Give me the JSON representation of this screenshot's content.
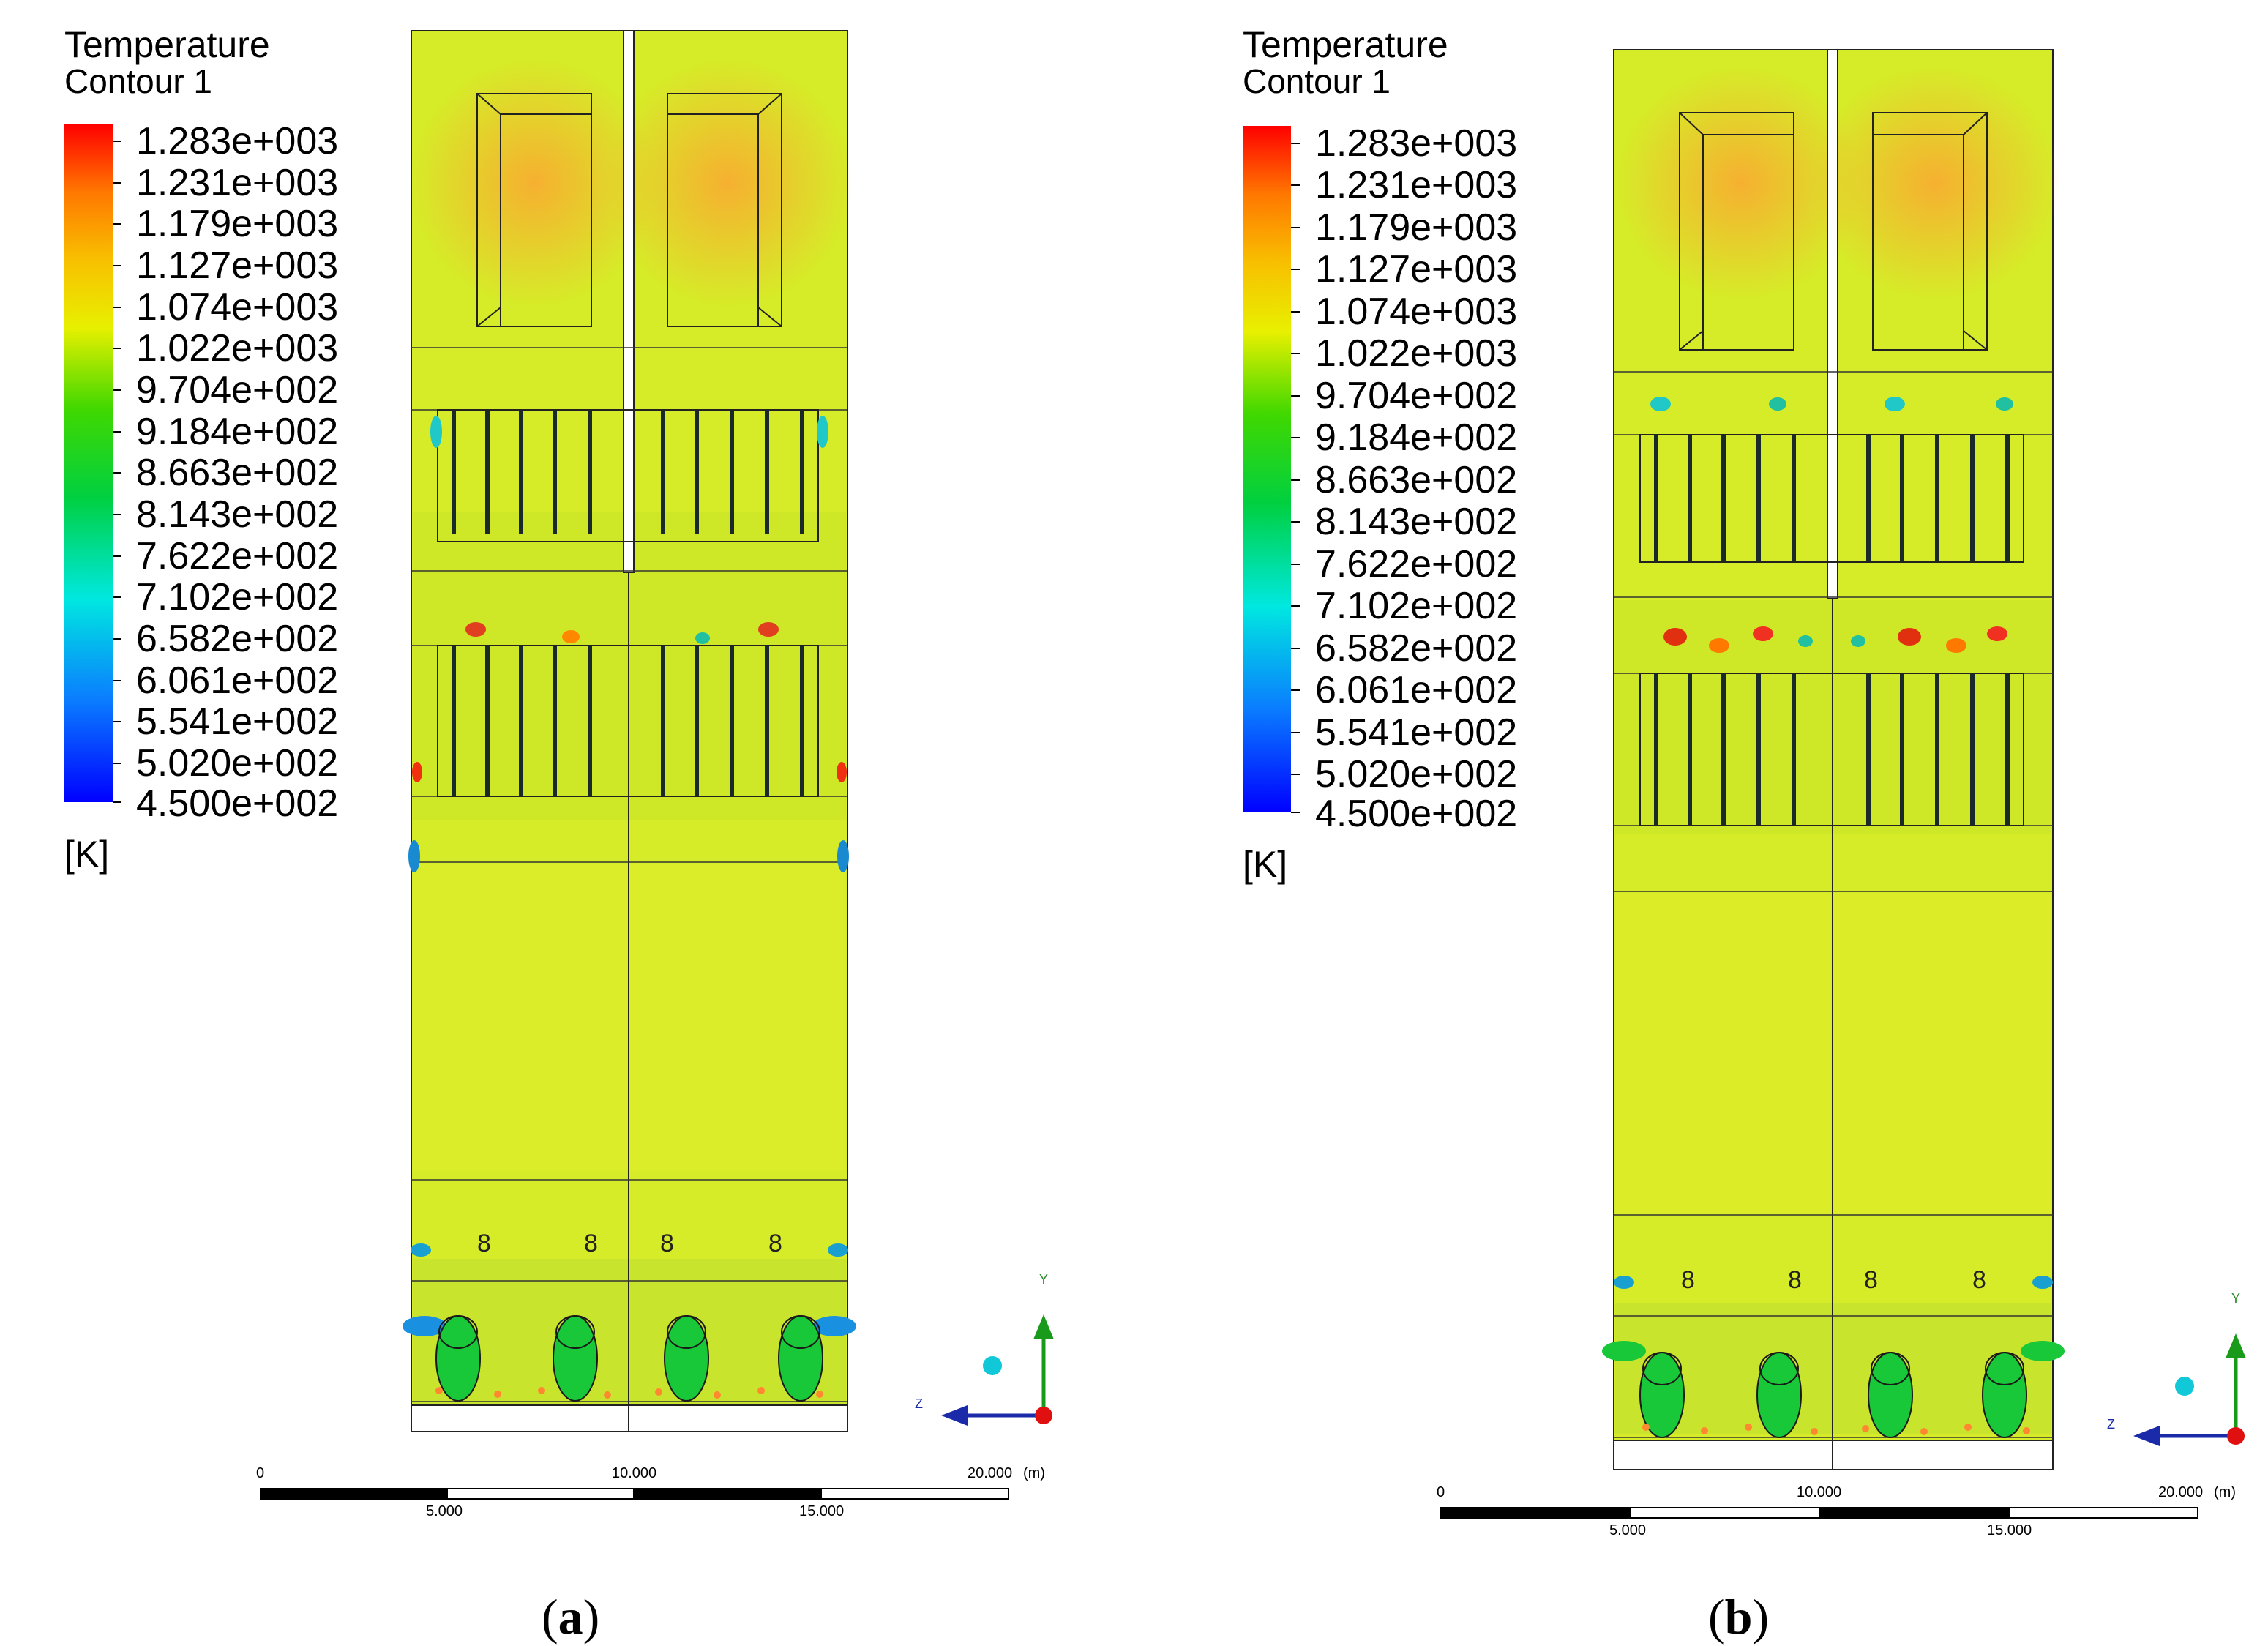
{
  "panels": [
    {
      "caption_open": "(",
      "caption_letter": "a",
      "caption_close": ")",
      "legend": {
        "title": "Temperature",
        "subtitle": "Contour 1",
        "ticks": [
          "1.283e+003",
          "1.231e+003",
          "1.179e+003",
          "1.127e+003",
          "1.074e+003",
          "1.022e+003",
          "9.704e+002",
          "9.184e+002",
          "8.663e+002",
          "8.143e+002",
          "7.622e+002",
          "7.102e+002",
          "6.582e+002",
          "6.061e+002",
          "5.541e+002",
          "5.020e+002",
          "4.500e+002"
        ],
        "unit": "[K]"
      },
      "scale": {
        "labels": [
          "0",
          "10.000",
          "20.000",
          "(m)",
          "5.000",
          "15.000"
        ]
      },
      "axes": {
        "y": "Y",
        "z": "Z"
      }
    },
    {
      "caption_open": "(",
      "caption_letter": "b",
      "caption_close": ")",
      "legend": {
        "title": "Temperature",
        "subtitle": "Contour 1",
        "ticks": [
          "1.283e+003",
          "1.231e+003",
          "1.179e+003",
          "1.127e+003",
          "1.074e+003",
          "1.022e+003",
          "9.704e+002",
          "9.184e+002",
          "8.663e+002",
          "8.143e+002",
          "7.622e+002",
          "7.102e+002",
          "6.582e+002",
          "6.061e+002",
          "5.541e+002",
          "5.020e+002",
          "4.500e+002"
        ],
        "unit": "[K]"
      },
      "scale": {
        "labels": [
          "0",
          "10.000",
          "20.000",
          "(m)",
          "5.000",
          "15.000"
        ]
      },
      "axes": {
        "y": "Y",
        "z": "Z"
      }
    }
  ],
  "colormap": [
    "#0000ff",
    "#0a7cff",
    "#00d8f0",
    "#00e070",
    "#00d000",
    "#a8e000",
    "#f0f000",
    "#f8c800",
    "#ff8800",
    "#ff0000"
  ]
}
